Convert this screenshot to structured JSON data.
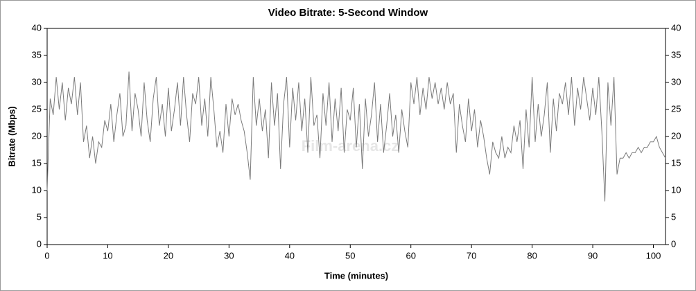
{
  "chart_data": {
    "type": "line",
    "title": "Video Bitrate: 5-Second Window",
    "xlabel": "Time (minutes)",
    "ylabel": "Bitrate (Mbps)",
    "watermark": "Film-arena.cz",
    "color": "#7a7a7a",
    "xlim": [
      0,
      102
    ],
    "xticks": [
      0,
      10,
      20,
      30,
      40,
      50,
      60,
      70,
      80,
      90,
      100
    ],
    "ylim": [
      0,
      40
    ],
    "yticks": [
      0,
      5,
      10,
      15,
      20,
      25,
      30,
      35,
      40
    ],
    "y2lim": [
      0,
      40
    ],
    "y2ticks": [
      0,
      5,
      10,
      15,
      20,
      25,
      30,
      35,
      40
    ],
    "x": [
      0,
      0.5,
      1,
      1.5,
      2,
      2.5,
      3,
      3.5,
      4,
      4.5,
      5,
      5.5,
      6,
      6.5,
      7,
      7.5,
      8,
      8.5,
      9,
      9.5,
      10,
      10.5,
      11,
      11.5,
      12,
      12.5,
      13,
      13.5,
      14,
      14.5,
      15,
      15.5,
      16,
      16.5,
      17,
      17.5,
      18,
      18.5,
      19,
      19.5,
      20,
      20.5,
      21,
      21.5,
      22,
      22.5,
      23,
      23.5,
      24,
      24.5,
      25,
      25.5,
      26,
      26.5,
      27,
      27.5,
      28,
      28.5,
      29,
      29.5,
      30,
      30.5,
      31,
      31.5,
      32,
      32.5,
      33,
      33.5,
      34,
      34.5,
      35,
      35.5,
      36,
      36.5,
      37,
      37.5,
      38,
      38.5,
      39,
      39.5,
      40,
      40.5,
      41,
      41.5,
      42,
      42.5,
      43,
      43.5,
      44,
      44.5,
      45,
      45.5,
      46,
      46.5,
      47,
      47.5,
      48,
      48.5,
      49,
      49.5,
      50,
      50.5,
      51,
      51.5,
      52,
      52.5,
      53,
      53.5,
      54,
      54.5,
      55,
      55.5,
      56,
      56.5,
      57,
      57.5,
      58,
      58.5,
      59,
      59.5,
      60,
      60.5,
      61,
      61.5,
      62,
      62.5,
      63,
      63.5,
      64,
      64.5,
      65,
      65.5,
      66,
      66.5,
      67,
      67.5,
      68,
      68.5,
      69,
      69.5,
      70,
      70.5,
      71,
      71.5,
      72,
      72.5,
      73,
      73.5,
      74,
      74.5,
      75,
      75.5,
      76,
      76.5,
      77,
      77.5,
      78,
      78.5,
      79,
      79.5,
      80,
      80.5,
      81,
      81.5,
      82,
      82.5,
      83,
      83.5,
      84,
      84.5,
      85,
      85.5,
      86,
      86.5,
      87,
      87.5,
      88,
      88.5,
      89,
      89.5,
      90,
      90.5,
      91,
      91.5,
      92,
      92.5,
      93,
      93.5,
      94,
      94.5,
      95,
      95.5,
      96,
      96.5,
      97,
      97.5,
      98,
      98.5,
      99,
      99.5,
      100,
      100.5,
      101,
      101.5,
      102
    ],
    "values": [
      10,
      27,
      24,
      31,
      25,
      30,
      23,
      29,
      26,
      31,
      24,
      30,
      19,
      22,
      16,
      20,
      15,
      19,
      18,
      23,
      21,
      26,
      19,
      24,
      28,
      20,
      22,
      32,
      21,
      28,
      25,
      20,
      30,
      23,
      19,
      27,
      31,
      22,
      26,
      20,
      29,
      21,
      25,
      30,
      22,
      31,
      24,
      19,
      28,
      26,
      31,
      22,
      27,
      20,
      31,
      25,
      18,
      21,
      17,
      26,
      20,
      27,
      24,
      26,
      23,
      21,
      17,
      12,
      31,
      22,
      27,
      21,
      25,
      16,
      30,
      22,
      28,
      14,
      26,
      31,
      18,
      29,
      23,
      30,
      21,
      27,
      17,
      31,
      22,
      24,
      16,
      28,
      22,
      30,
      19,
      27,
      21,
      29,
      17,
      25,
      23,
      29,
      18,
      26,
      14,
      27,
      20,
      24,
      30,
      19,
      26,
      17,
      22,
      28,
      20,
      24,
      17,
      25,
      21,
      18,
      30,
      26,
      31,
      24,
      29,
      25,
      31,
      27,
      30,
      26,
      29,
      25,
      30,
      26,
      28,
      17,
      26,
      22,
      19,
      27,
      21,
      25,
      18,
      23,
      20,
      16,
      13,
      19,
      17,
      16,
      20,
      16,
      18,
      17,
      22,
      19,
      23,
      14,
      25,
      18,
      31,
      19,
      26,
      20,
      24,
      30,
      17,
      27,
      21,
      28,
      26,
      30,
      24,
      31,
      22,
      29,
      25,
      31,
      27,
      23,
      29,
      24,
      31,
      21,
      8,
      30,
      22,
      31,
      13,
      16,
      16,
      17,
      16,
      17,
      17,
      18,
      17,
      18,
      18,
      19,
      19,
      20,
      18,
      17,
      16
    ]
  }
}
